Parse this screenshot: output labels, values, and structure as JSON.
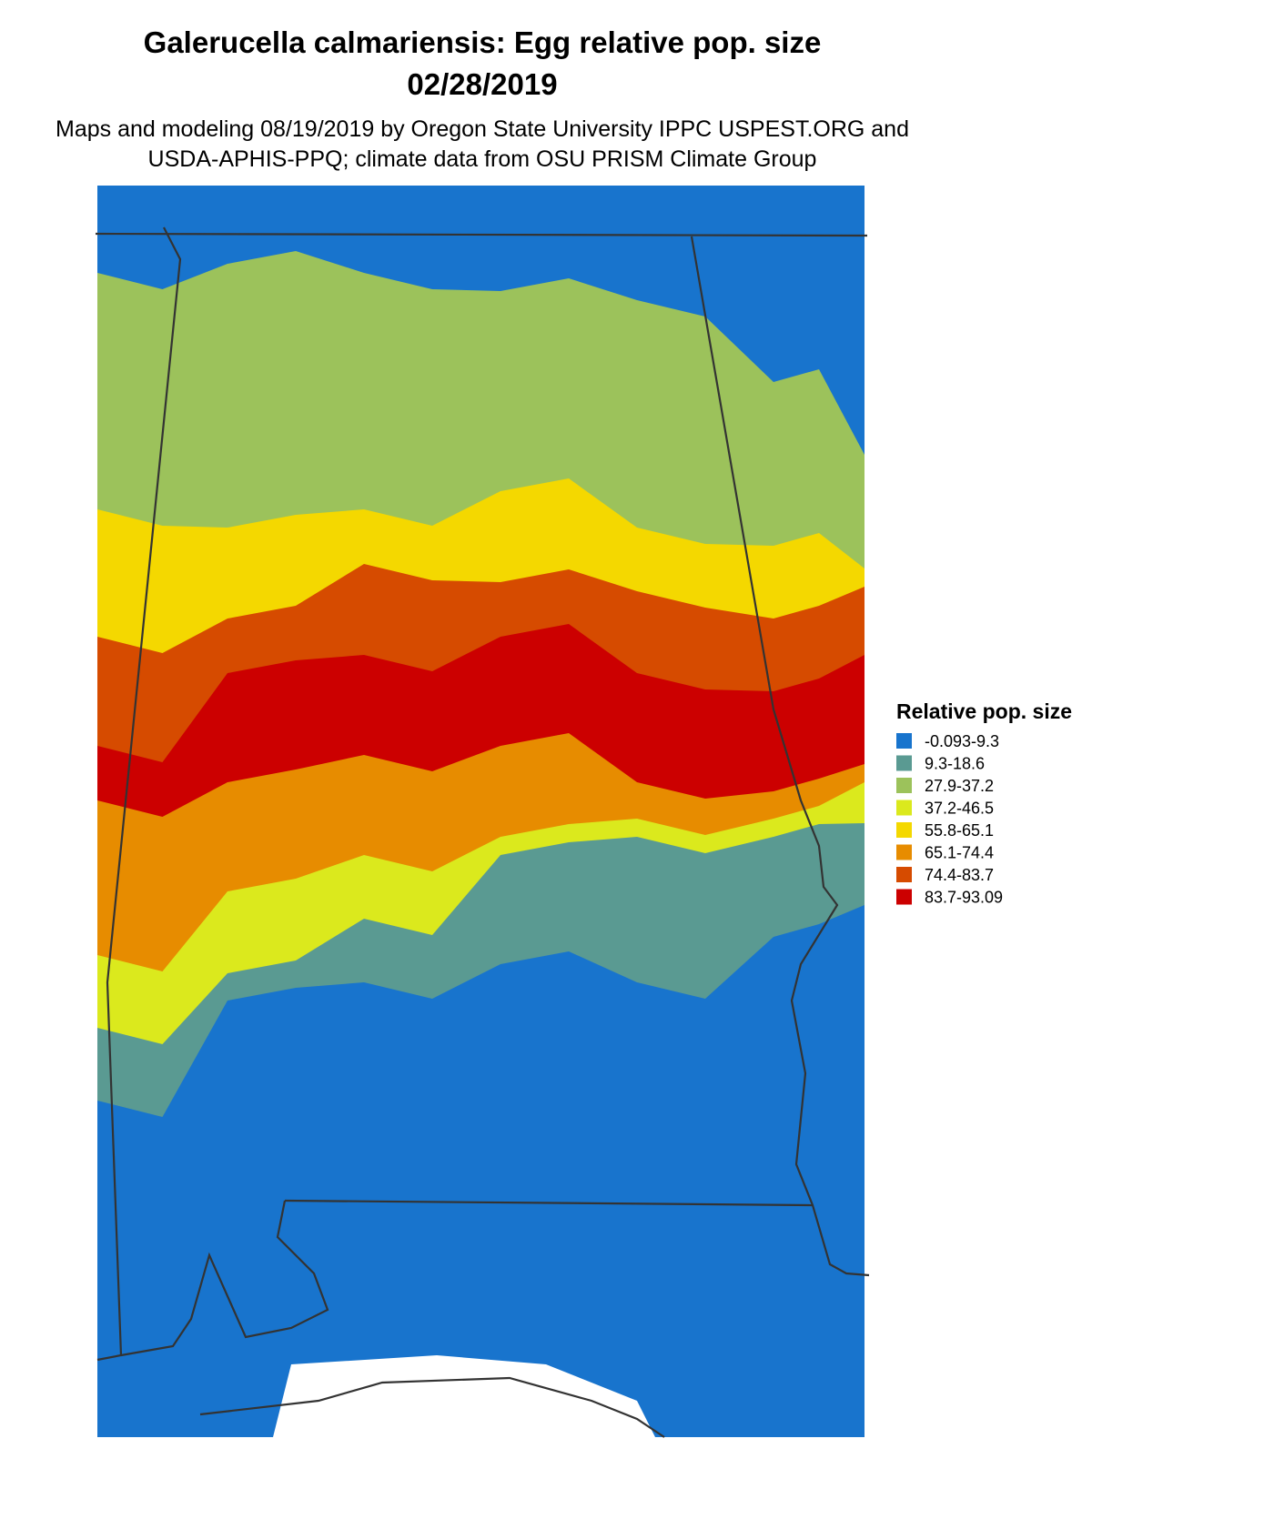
{
  "header": {
    "title": "Galerucella calmariensis: Egg relative pop. size",
    "date": "02/28/2019",
    "subtitle": [
      "Maps and modeling 08/19/2019 by Oregon State University IPPC USPEST.ORG and",
      "USDA-APHIS-PPQ; climate data from OSU PRISM Climate Group"
    ]
  },
  "legend": {
    "title": "Relative pop. size",
    "items": [
      {
        "label": "-0.093-9.3",
        "color": "#1874cd"
      },
      {
        "label": "9.3-18.6",
        "color": "#5a9a92"
      },
      {
        "label": "27.9-37.2",
        "color": "#9cc25b"
      },
      {
        "label": "37.2-46.5",
        "color": "#dbe91d"
      },
      {
        "label": "55.8-65.1",
        "color": "#f4d800"
      },
      {
        "label": "65.1-74.4",
        "color": "#e78c00"
      },
      {
        "label": "74.4-83.7",
        "color": "#d64b00"
      },
      {
        "label": "83.7-93.09",
        "color": "#cc0000"
      }
    ]
  }
}
